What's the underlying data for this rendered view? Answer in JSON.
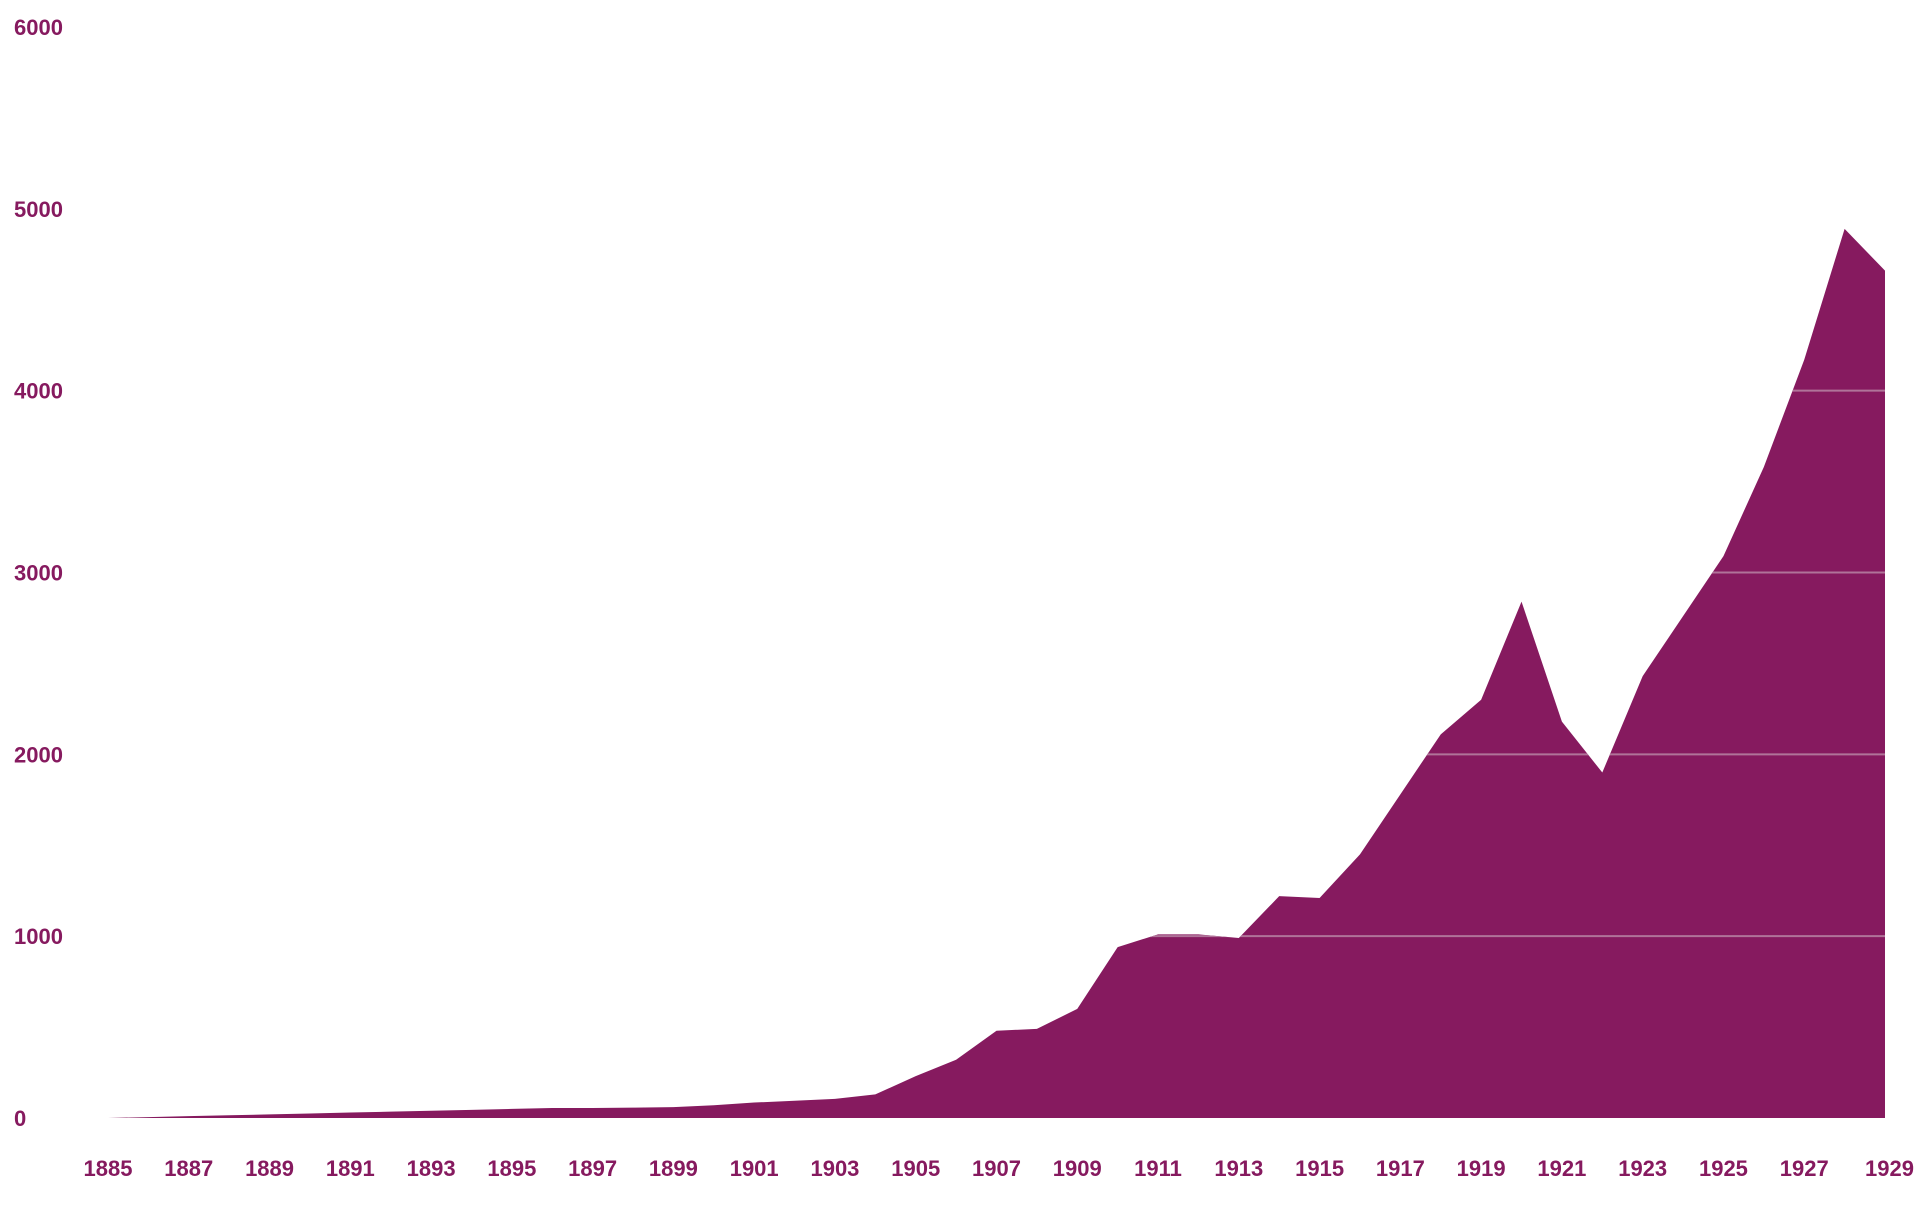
{
  "colors": {
    "area": "#861A5F",
    "text": "#861A5F",
    "grid_over_area": "#B07399"
  },
  "chart_data": {
    "type": "area",
    "title": "",
    "xlabel": "",
    "ylabel": "",
    "ylim": [
      0,
      6000
    ],
    "xlim": [
      1885,
      1929
    ],
    "grid": "horizontal lines visible over the filled area",
    "y_ticks": [
      "0",
      "1000",
      "2000",
      "3000",
      "4000",
      "5000",
      "6000"
    ],
    "x_ticks": [
      "1885",
      "1887",
      "1889",
      "1891",
      "1893",
      "1895",
      "1897",
      "1899",
      "1901",
      "1903",
      "1905",
      "1907",
      "1909",
      "1911",
      "1913",
      "1915",
      "1917",
      "1919",
      "1921",
      "1923",
      "1925",
      "1927",
      "1929"
    ],
    "x": [
      1885,
      1886,
      1887,
      1888,
      1889,
      1890,
      1891,
      1892,
      1893,
      1894,
      1895,
      1896,
      1897,
      1898,
      1899,
      1900,
      1901,
      1902,
      1903,
      1904,
      1905,
      1906,
      1907,
      1908,
      1909,
      1910,
      1911,
      1912,
      1913,
      1914,
      1915,
      1916,
      1917,
      1918,
      1919,
      1920,
      1921,
      1922,
      1923,
      1924,
      1925,
      1926,
      1927,
      1928,
      1929
    ],
    "values": [
      0,
      5,
      10,
      15,
      20,
      25,
      30,
      35,
      40,
      45,
      50,
      55,
      55,
      57,
      60,
      70,
      85,
      95,
      105,
      130,
      230,
      320,
      480,
      490,
      600,
      940,
      1010,
      1010,
      990,
      1220,
      1210,
      1450,
      1780,
      2110,
      2300,
      2840,
      2180,
      1900,
      2430,
      2760,
      3090,
      3580,
      4170,
      4890,
      4660
    ]
  }
}
